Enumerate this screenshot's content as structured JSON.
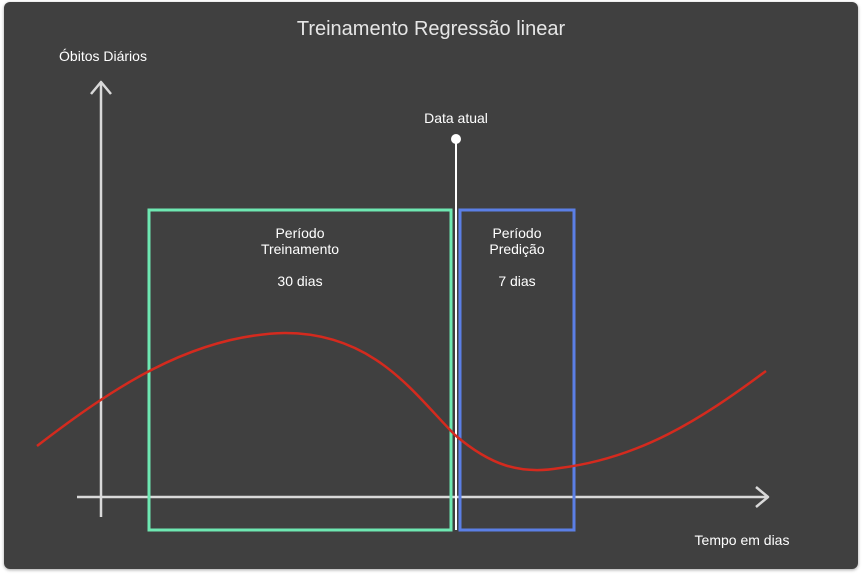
{
  "title": "Treinamento Regressão linear",
  "y_axis_label": "Óbitos Diários",
  "x_axis_label": "Tempo em dias",
  "current_date_label": "Data atual",
  "training_box": {
    "label_line1": "Período",
    "label_line2": "Treinamento",
    "duration": "30 dias"
  },
  "prediction_box": {
    "label_line1": "Período",
    "label_line2": "Predição",
    "duration": "7 dias"
  },
  "colors": {
    "background": "#404040",
    "axis": "#d9d9d9",
    "curve": "#d42a1e",
    "training_border": "#6ee8b2",
    "prediction_border": "#5b7fe6",
    "marker": "#ffffff"
  }
}
